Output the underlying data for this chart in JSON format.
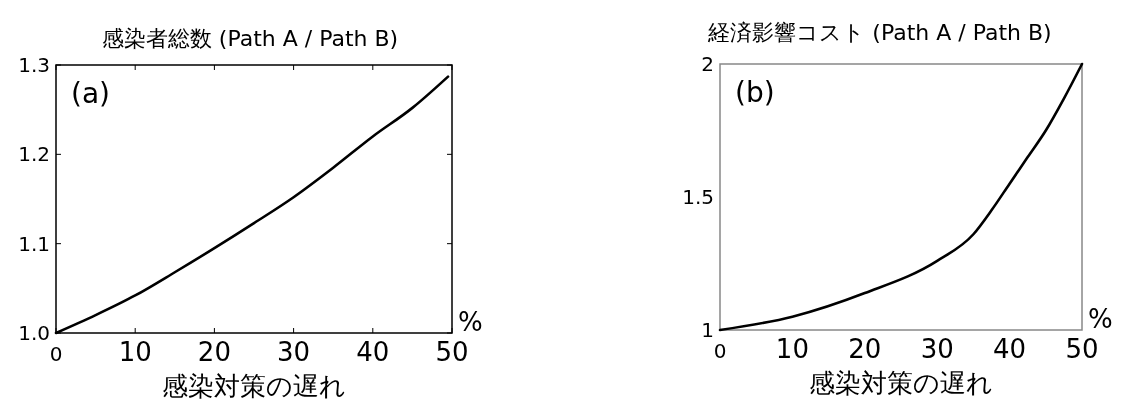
{
  "chart_data": [
    {
      "type": "line",
      "title": "感染者総数 (Path A / Path B)",
      "xlabel": "感染対策の遅れ",
      "annotations": [
        "(a)",
        "%"
      ],
      "x": [
        0,
        5,
        10,
        15,
        20,
        25,
        30,
        35,
        40,
        45,
        49.5
      ],
      "series": [
        {
          "color": "#000000",
          "values": [
            1.0,
            1.02,
            1.042,
            1.068,
            1.095,
            1.123,
            1.152,
            1.185,
            1.22,
            1.252,
            1.287
          ]
        }
      ],
      "xlim": [
        0,
        50
      ],
      "xticks": [
        0,
        10,
        20,
        30,
        40,
        50
      ],
      "ylim": [
        1.0,
        1.3
      ],
      "yticks": [
        {
          "value": 1,
          "label": "1.0"
        },
        1.1,
        1.2,
        1.3
      ]
    },
    {
      "type": "line",
      "title": "経済影響コスト (Path A / Path B)",
      "xlabel": "感染対策の遅れ",
      "annotations": [
        "(b)",
        "%"
      ],
      "x": [
        0,
        10,
        20,
        30,
        35,
        37.5,
        40,
        42.5,
        45,
        47.5,
        50
      ],
      "series": [
        {
          "color": "#000000",
          "values": [
            1.0,
            1.05,
            1.139,
            1.26,
            1.36,
            1.45,
            1.55,
            1.65,
            1.75,
            1.87,
            2.0
          ]
        }
      ],
      "xlim": [
        0,
        50
      ],
      "xticks": [
        0,
        10,
        20,
        30,
        40,
        50
      ],
      "ylim": [
        1,
        2
      ],
      "yticks": [
        1,
        1.5,
        2
      ]
    }
  ]
}
